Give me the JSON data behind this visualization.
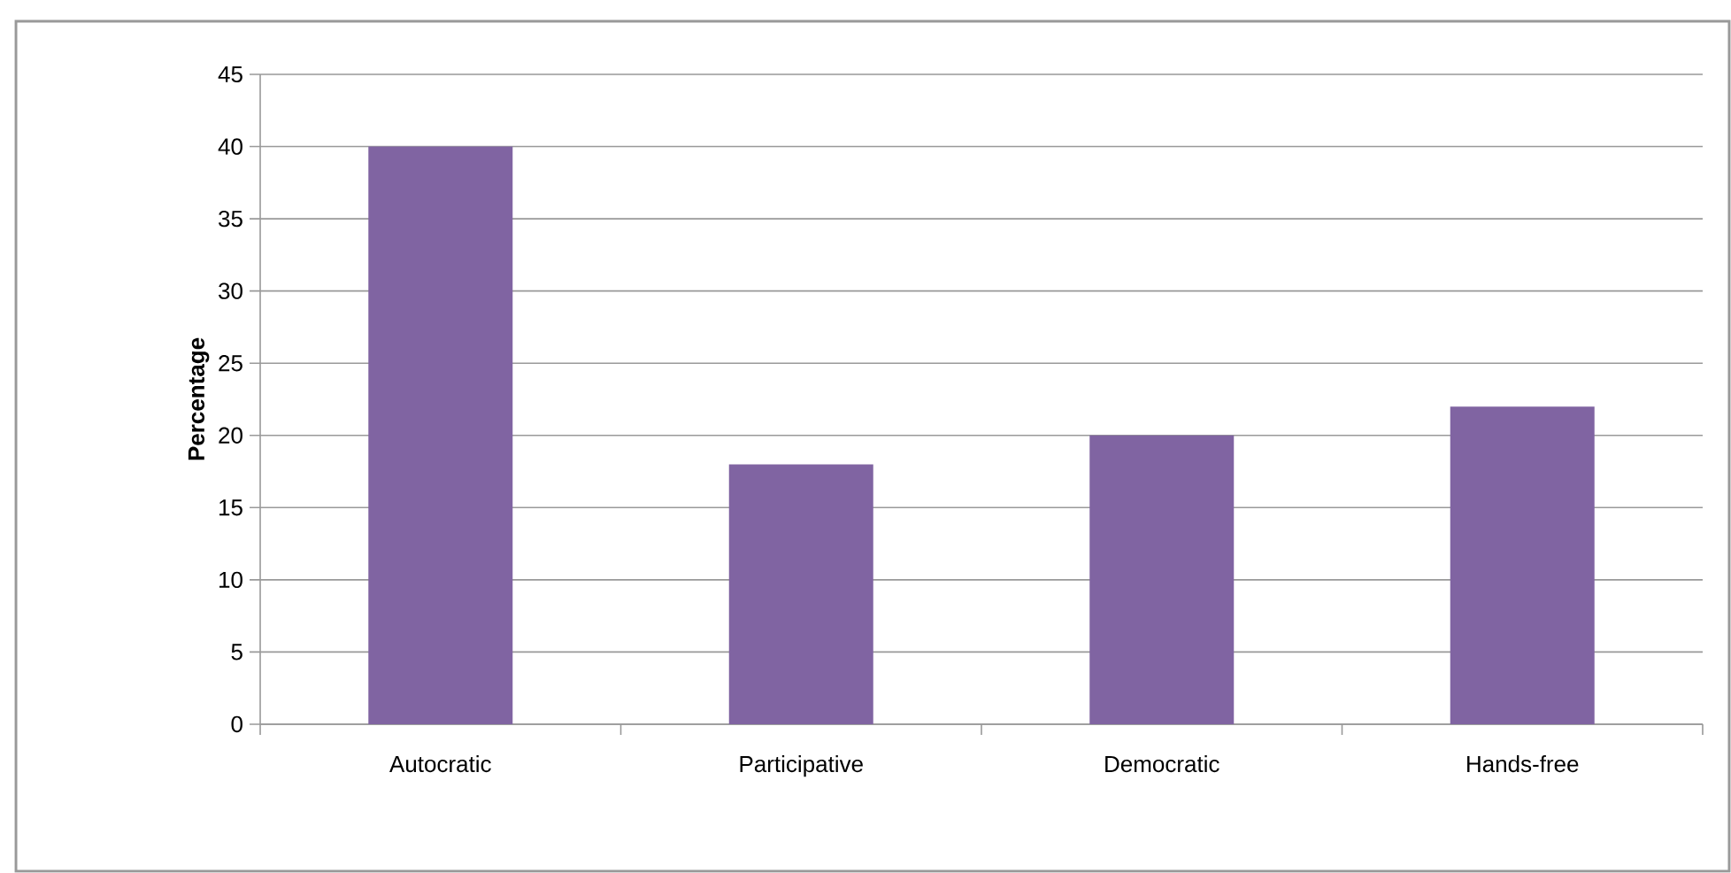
{
  "chart_data": {
    "type": "bar",
    "ylabel": "**Percentage**",
    "categories": [
      "Autocratic",
      "Participative",
      "Democratic",
      "Hands-free"
    ],
    "values": [
      40,
      18,
      20,
      22
    ],
    "color": "#8064a2",
    "ylim": [
      0,
      45
    ],
    "yticks": [
      0,
      5,
      10,
      15,
      20,
      25,
      30,
      35,
      40,
      45
    ],
    "grid": "y"
  }
}
